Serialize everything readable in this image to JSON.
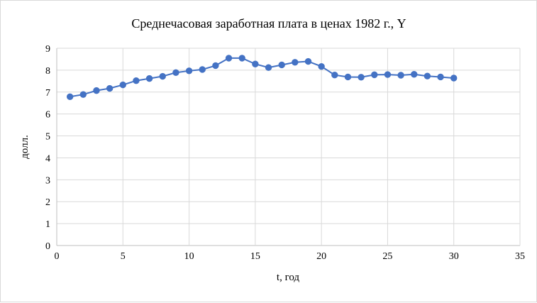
{
  "chart_data": {
    "type": "scatter",
    "title": "Среднечасовая заработная плата в ценах 1982 г., Y",
    "xlabel": "t, год",
    "ylabel": "долл.",
    "xlim": [
      0,
      35
    ],
    "ylim": [
      0,
      9
    ],
    "xticks": [
      0,
      5,
      10,
      15,
      20,
      25,
      30,
      35
    ],
    "yticks": [
      0,
      1,
      2,
      3,
      4,
      5,
      6,
      7,
      8,
      9
    ],
    "grid": true,
    "lines": true,
    "series": [
      {
        "x": [
          1,
          2,
          3,
          4,
          5,
          6,
          7,
          8,
          9,
          10,
          11,
          12,
          13,
          14,
          15,
          16,
          17,
          18,
          19,
          20,
          21,
          22,
          23,
          24,
          25,
          26,
          27,
          28,
          29,
          30
        ],
        "values": [
          6.79,
          6.89,
          7.07,
          7.17,
          7.33,
          7.52,
          7.62,
          7.72,
          7.89,
          7.97,
          8.03,
          8.21,
          8.55,
          8.55,
          8.28,
          8.12,
          8.24,
          8.36,
          8.4,
          8.17,
          7.78,
          7.69,
          7.68,
          7.79,
          7.8,
          7.77,
          7.81,
          7.73,
          7.69,
          7.64
        ]
      }
    ],
    "colors": {
      "series": "#4472c4",
      "grid": "#d9d9d9",
      "axis": "#bfbfbf"
    }
  }
}
